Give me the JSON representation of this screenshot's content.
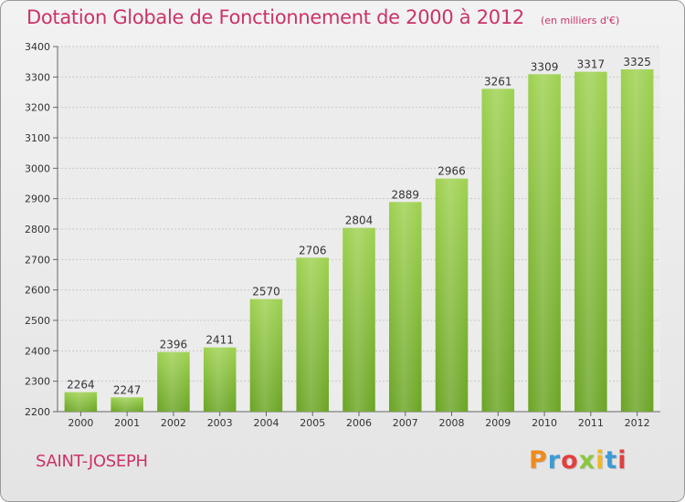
{
  "chart_data": {
    "type": "bar",
    "title": "Dotation Globale de Fonctionnement de 2000 à 2012",
    "subtitle": "(en milliers d'€)",
    "categories": [
      "2000",
      "2001",
      "2002",
      "2003",
      "2004",
      "2005",
      "2006",
      "2007",
      "2008",
      "2009",
      "2010",
      "2011",
      "2012"
    ],
    "values": [
      2264,
      2247,
      2396,
      2411,
      2570,
      2706,
      2804,
      2889,
      2966,
      3261,
      3309,
      3317,
      3325
    ],
    "ylim": [
      2200,
      3400
    ],
    "yticks": [
      2200,
      2300,
      2400,
      2500,
      2600,
      2700,
      2800,
      2900,
      3000,
      3100,
      3200,
      3300,
      3400
    ],
    "grid": true,
    "bar_color": "#8cc63f"
  },
  "commune": "SAINT-JOSEPH",
  "brand": {
    "name": "Proxiti",
    "letters": [
      "P",
      "r",
      "o",
      "x",
      "i",
      "t",
      "i"
    ]
  }
}
